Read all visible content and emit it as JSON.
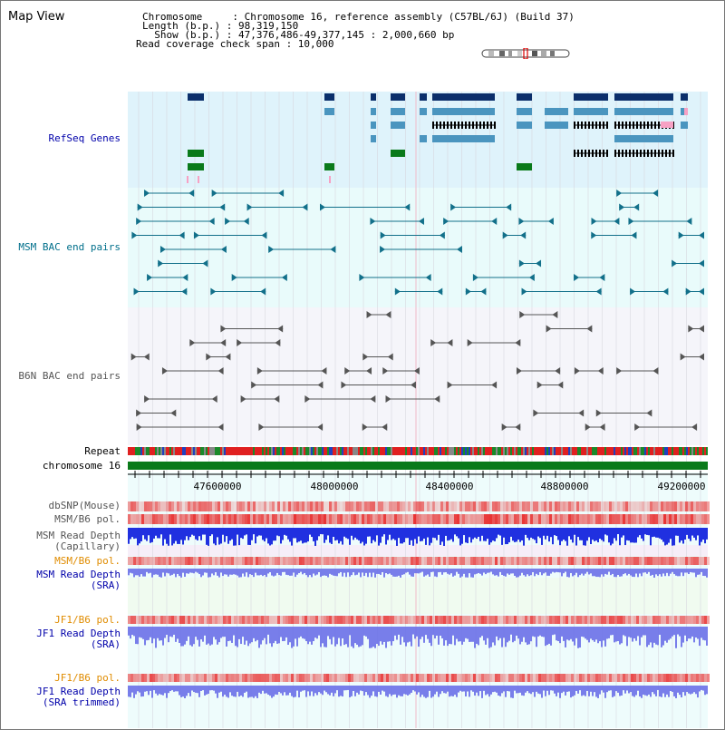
{
  "header": {
    "title": "Map View",
    "info_lines": [
      "Chromosome     : Chromosome 16, reference assembly (C57BL/6J) (Build 37)",
      "Length (b.p.) : 98,319,150",
      "  Show (b.p.) : 47,376,486-49,377,145 : 2,000,660 bp",
      "Read coverage check span : 10,000"
    ]
  },
  "tracks": {
    "refseq": "RefSeq Genes",
    "msm_bac": "MSM BAC end pairs",
    "b6n_bac": "B6N BAC end pairs",
    "repeat": "Repeat",
    "chromosome": "chromosome 16",
    "dbsnp": "dbSNP(Mouse)",
    "msm_b6_pol_1": "MSM/B6 pol.",
    "msm_depth_cap_1": "MSM Read Depth",
    "msm_depth_cap_2": "(Capillary)",
    "msm_b6_pol_2": "MSM/B6 pol.",
    "msm_depth_sra_1": "MSM Read Depth",
    "msm_depth_sra_2": "(SRA)",
    "jf1_b6_pol_1": "JF1/B6 pol.",
    "jf1_depth_sra_1": "JF1 Read Depth",
    "jf1_depth_sra_2": "(SRA)",
    "jf1_b6_pol_2": "JF1/B6 pol.",
    "jf1_depth_trim_1": "JF1 Read Depth",
    "jf1_depth_trim_2": "(SRA trimmed)"
  },
  "axis": {
    "ticks": [
      "47600000",
      "48000000",
      "48400000",
      "48800000",
      "49200000"
    ]
  },
  "colors": {
    "refseq_bg": "#dff3fb",
    "msm_bg": "#e9fbfb",
    "b6n_bg": "#f5f5fa",
    "gene_dark": "#0b2f6b",
    "gene_mid": "#4a95bf",
    "gene_green": "#0a7a1a",
    "gene_pink": "#f7a1c4",
    "bac_teal": "#12708a",
    "bac_gray": "#555555",
    "chrom_green": "#0a7a1a",
    "depth_blue": "#2030e0",
    "pol_red": "#e83030"
  }
}
